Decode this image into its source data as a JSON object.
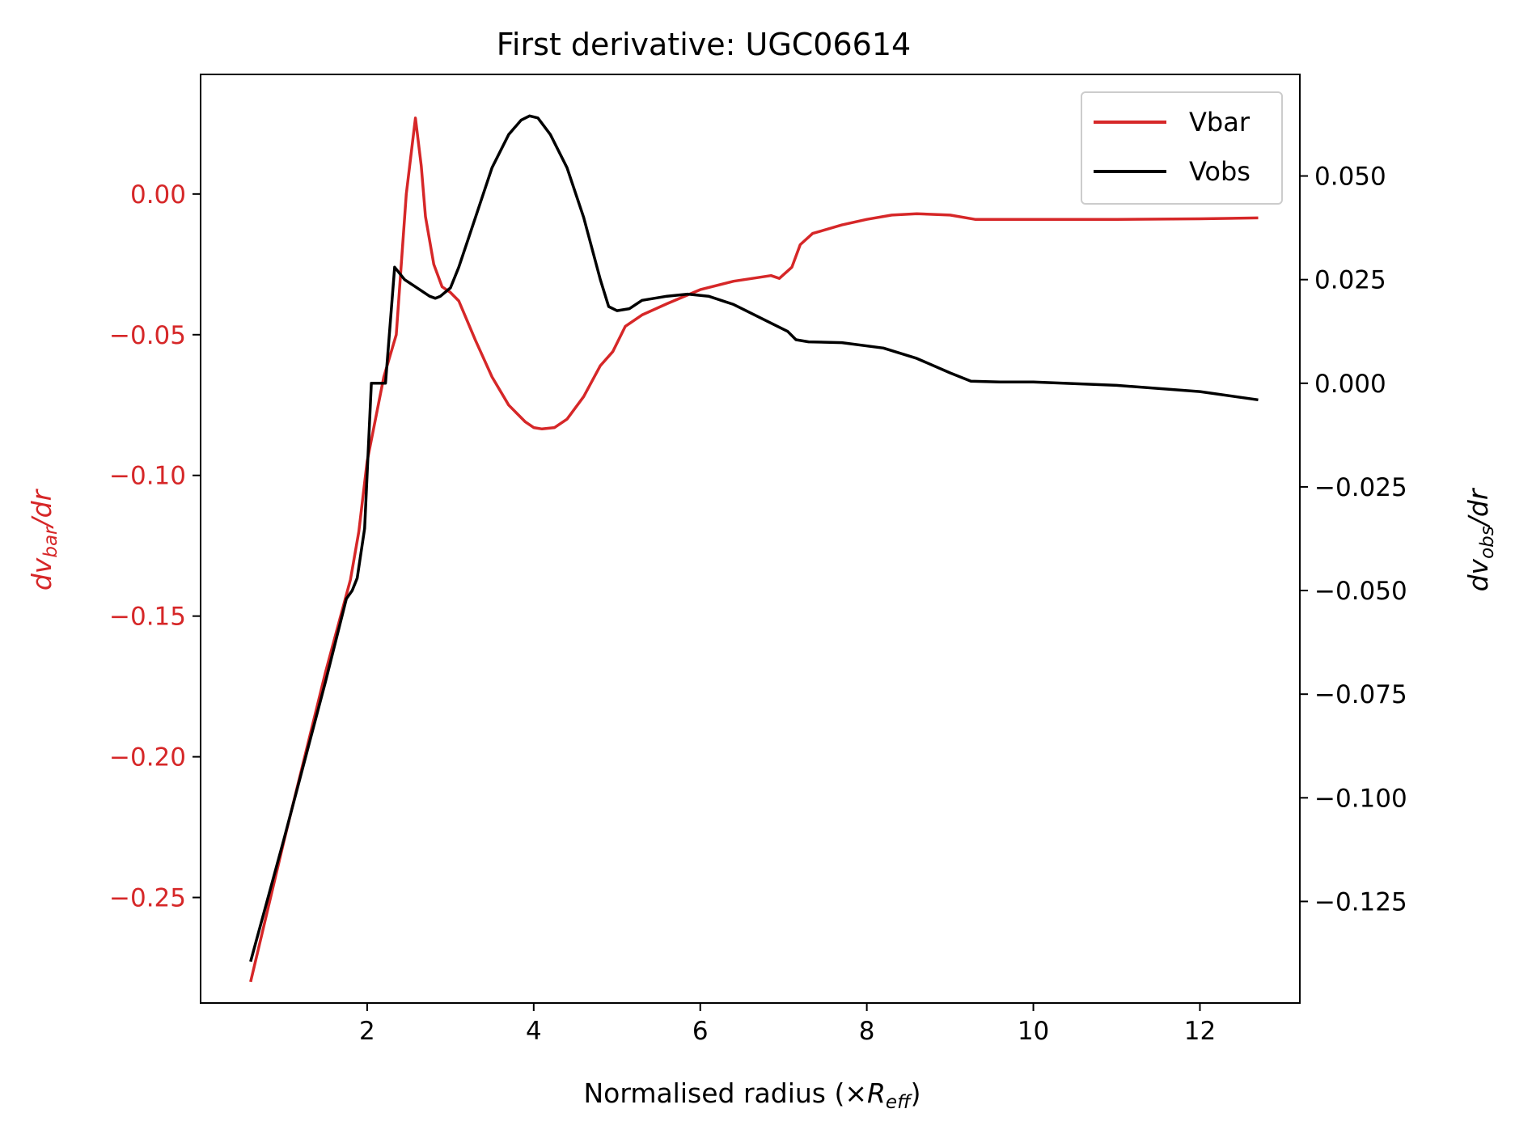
{
  "chart_data": {
    "type": "line",
    "title": "First derivative: UGC06614",
    "xlabel": {
      "main": "Normalised radius (×",
      "var": "R",
      "sub": "eff",
      "close": ")"
    },
    "ylabel_left": {
      "d": "dv",
      "sub": "bar",
      "rest": "/dr"
    },
    "ylabel_right": {
      "d": "dv",
      "sub": "obs",
      "rest": "/dr"
    },
    "xlim": [
      0.0,
      13.2
    ],
    "ylim_left": [
      -0.2875,
      0.0425
    ],
    "ylim_right": [
      -0.1495,
      0.0745
    ],
    "x_ticks": [
      2,
      4,
      6,
      8,
      10,
      12
    ],
    "x_tick_labels": [
      "2",
      "4",
      "6",
      "8",
      "10",
      "12"
    ],
    "y_left_ticks": [
      0.0,
      -0.05,
      -0.1,
      -0.15,
      -0.2,
      -0.25
    ],
    "y_left_tick_labels": [
      "0.00",
      "−0.05",
      "−0.10",
      "−0.15",
      "−0.20",
      "−0.25"
    ],
    "y_right_ticks": [
      0.05,
      0.025,
      0.0,
      -0.025,
      -0.05,
      -0.075,
      -0.1,
      -0.125
    ],
    "y_right_tick_labels": [
      "0.050",
      "0.025",
      "0.000",
      "−0.025",
      "−0.050",
      "−0.075",
      "−0.100",
      "−0.125"
    ],
    "grid": false,
    "legend_position": "top-right",
    "series": [
      {
        "name": "Vbar",
        "axis": "left",
        "color": "#d62728",
        "points": [
          [
            0.6,
            -0.28
          ],
          [
            1.0,
            -0.23
          ],
          [
            1.5,
            -0.17
          ],
          [
            1.8,
            -0.137
          ],
          [
            1.9,
            -0.12
          ],
          [
            2.0,
            -0.095
          ],
          [
            2.1,
            -0.08
          ],
          [
            2.2,
            -0.065
          ],
          [
            2.35,
            -0.05
          ],
          [
            2.47,
            0.0
          ],
          [
            2.58,
            0.027
          ],
          [
            2.65,
            0.01
          ],
          [
            2.7,
            -0.008
          ],
          [
            2.8,
            -0.025
          ],
          [
            2.9,
            -0.033
          ],
          [
            3.0,
            -0.035
          ],
          [
            3.1,
            -0.038
          ],
          [
            3.3,
            -0.052
          ],
          [
            3.5,
            -0.065
          ],
          [
            3.7,
            -0.075
          ],
          [
            3.9,
            -0.081
          ],
          [
            4.0,
            -0.083
          ],
          [
            4.1,
            -0.0835
          ],
          [
            4.25,
            -0.083
          ],
          [
            4.4,
            -0.08
          ],
          [
            4.6,
            -0.072
          ],
          [
            4.8,
            -0.061
          ],
          [
            4.95,
            -0.056
          ],
          [
            5.1,
            -0.047
          ],
          [
            5.3,
            -0.043
          ],
          [
            5.6,
            -0.039
          ],
          [
            6.0,
            -0.034
          ],
          [
            6.4,
            -0.031
          ],
          [
            6.85,
            -0.029
          ],
          [
            6.95,
            -0.03
          ],
          [
            7.1,
            -0.026
          ],
          [
            7.2,
            -0.018
          ],
          [
            7.35,
            -0.014
          ],
          [
            7.7,
            -0.011
          ],
          [
            8.0,
            -0.009
          ],
          [
            8.3,
            -0.0075
          ],
          [
            8.6,
            -0.007
          ],
          [
            9.0,
            -0.0075
          ],
          [
            9.3,
            -0.009
          ],
          [
            10.0,
            -0.009
          ],
          [
            11.0,
            -0.009
          ],
          [
            12.0,
            -0.0088
          ],
          [
            12.7,
            -0.0085
          ]
        ]
      },
      {
        "name": "Vobs",
        "axis": "right",
        "color": "#000000",
        "points": [
          [
            0.6,
            -0.1395
          ],
          [
            1.0,
            -0.11
          ],
          [
            1.5,
            -0.072
          ],
          [
            1.75,
            -0.052
          ],
          [
            1.82,
            -0.05
          ],
          [
            1.88,
            -0.047
          ],
          [
            1.97,
            -0.035
          ],
          [
            2.05,
            0.0
          ],
          [
            2.13,
            0.0
          ],
          [
            2.22,
            0.0
          ],
          [
            2.33,
            0.028
          ],
          [
            2.45,
            0.025
          ],
          [
            2.6,
            0.023
          ],
          [
            2.75,
            0.021
          ],
          [
            2.82,
            0.0205
          ],
          [
            2.88,
            0.021
          ],
          [
            3.0,
            0.023
          ],
          [
            3.1,
            0.028
          ],
          [
            3.3,
            0.04
          ],
          [
            3.5,
            0.052
          ],
          [
            3.7,
            0.06
          ],
          [
            3.85,
            0.0635
          ],
          [
            3.95,
            0.0645
          ],
          [
            4.05,
            0.064
          ],
          [
            4.2,
            0.06
          ],
          [
            4.4,
            0.052
          ],
          [
            4.6,
            0.04
          ],
          [
            4.8,
            0.025
          ],
          [
            4.9,
            0.0185
          ],
          [
            5.0,
            0.0175
          ],
          [
            5.15,
            0.018
          ],
          [
            5.3,
            0.02
          ],
          [
            5.6,
            0.021
          ],
          [
            5.85,
            0.0215
          ],
          [
            6.1,
            0.021
          ],
          [
            6.4,
            0.019
          ],
          [
            6.7,
            0.016
          ],
          [
            6.9,
            0.014
          ],
          [
            7.05,
            0.0125
          ],
          [
            7.15,
            0.0105
          ],
          [
            7.3,
            0.01
          ],
          [
            7.7,
            0.0098
          ],
          [
            8.2,
            0.0085
          ],
          [
            8.6,
            0.006
          ],
          [
            9.0,
            0.0025
          ],
          [
            9.25,
            0.0005
          ],
          [
            9.6,
            0.0003
          ],
          [
            10.0,
            0.0003
          ],
          [
            11.0,
            -0.0005
          ],
          [
            12.0,
            -0.002
          ],
          [
            12.7,
            -0.004
          ]
        ]
      }
    ]
  }
}
